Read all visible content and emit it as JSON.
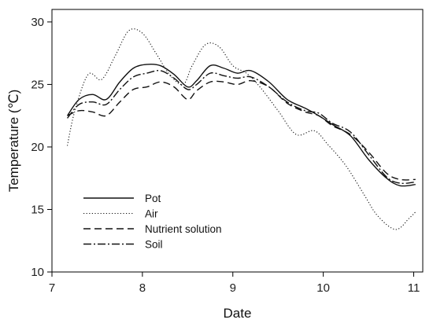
{
  "chart_data": {
    "type": "line",
    "title": "",
    "xlabel": "Date",
    "ylabel": "Temperature (℃)",
    "xlim": [
      7,
      11.1
    ],
    "ylim": [
      10,
      31
    ],
    "xticks": [
      7,
      8,
      9,
      10,
      11
    ],
    "yticks": [
      10,
      15,
      20,
      25,
      30
    ],
    "grid": false,
    "legend_position": "bottom-left",
    "series": [
      {
        "name": "Pot",
        "dash": "solid",
        "x": [
          7.17,
          7.3,
          7.45,
          7.6,
          7.75,
          7.9,
          8.05,
          8.2,
          8.35,
          8.5,
          8.6,
          8.75,
          8.9,
          9.05,
          9.2,
          9.4,
          9.6,
          9.8,
          9.95,
          10.1,
          10.3,
          10.5,
          10.7,
          10.85,
          11.02
        ],
        "y": [
          22.5,
          23.8,
          24.2,
          23.8,
          25.2,
          26.3,
          26.6,
          26.5,
          25.8,
          24.8,
          25.3,
          26.5,
          26.3,
          25.9,
          26.1,
          25.2,
          23.8,
          23.1,
          22.5,
          21.8,
          20.9,
          19.0,
          17.5,
          16.9,
          17.0
        ]
      },
      {
        "name": "Air",
        "dash": "dotted",
        "x": [
          7.17,
          7.25,
          7.4,
          7.55,
          7.7,
          7.85,
          8.0,
          8.15,
          8.3,
          8.45,
          8.55,
          8.7,
          8.85,
          9.0,
          9.15,
          9.3,
          9.5,
          9.7,
          9.9,
          10.05,
          10.25,
          10.45,
          10.6,
          10.8,
          10.95,
          11.02
        ],
        "y": [
          20.1,
          22.8,
          25.8,
          25.4,
          27.3,
          29.3,
          29.1,
          27.5,
          25.8,
          25.0,
          26.5,
          28.2,
          28.0,
          26.5,
          25.9,
          24.8,
          22.9,
          21.0,
          21.3,
          20.2,
          18.5,
          16.2,
          14.5,
          13.4,
          14.3,
          14.8
        ]
      },
      {
        "name": "Nutrient solution",
        "dash": "dashed",
        "x": [
          7.17,
          7.3,
          7.45,
          7.6,
          7.75,
          7.9,
          8.05,
          8.2,
          8.35,
          8.5,
          8.6,
          8.75,
          8.9,
          9.05,
          9.2,
          9.4,
          9.6,
          9.8,
          9.95,
          10.1,
          10.3,
          10.5,
          10.7,
          10.85,
          11.02
        ],
        "y": [
          22.5,
          22.9,
          22.8,
          22.5,
          23.6,
          24.6,
          24.8,
          25.2,
          24.8,
          23.8,
          24.5,
          25.2,
          25.2,
          25.0,
          25.3,
          24.8,
          23.5,
          22.8,
          22.5,
          21.7,
          21.0,
          19.6,
          17.9,
          17.4,
          17.4
        ]
      },
      {
        "name": "Soil",
        "dash": "dashdot",
        "x": [
          7.17,
          7.3,
          7.45,
          7.6,
          7.75,
          7.9,
          8.05,
          8.2,
          8.35,
          8.5,
          8.6,
          8.75,
          8.9,
          9.05,
          9.2,
          9.4,
          9.6,
          9.8,
          9.95,
          10.1,
          10.3,
          10.5,
          10.7,
          10.85,
          11.02
        ],
        "y": [
          22.3,
          23.4,
          23.6,
          23.4,
          24.6,
          25.6,
          25.9,
          26.1,
          25.5,
          24.6,
          25.0,
          25.9,
          25.7,
          25.5,
          25.6,
          24.8,
          23.6,
          22.9,
          22.7,
          21.9,
          21.2,
          19.4,
          17.6,
          17.1,
          17.2
        ]
      }
    ]
  }
}
